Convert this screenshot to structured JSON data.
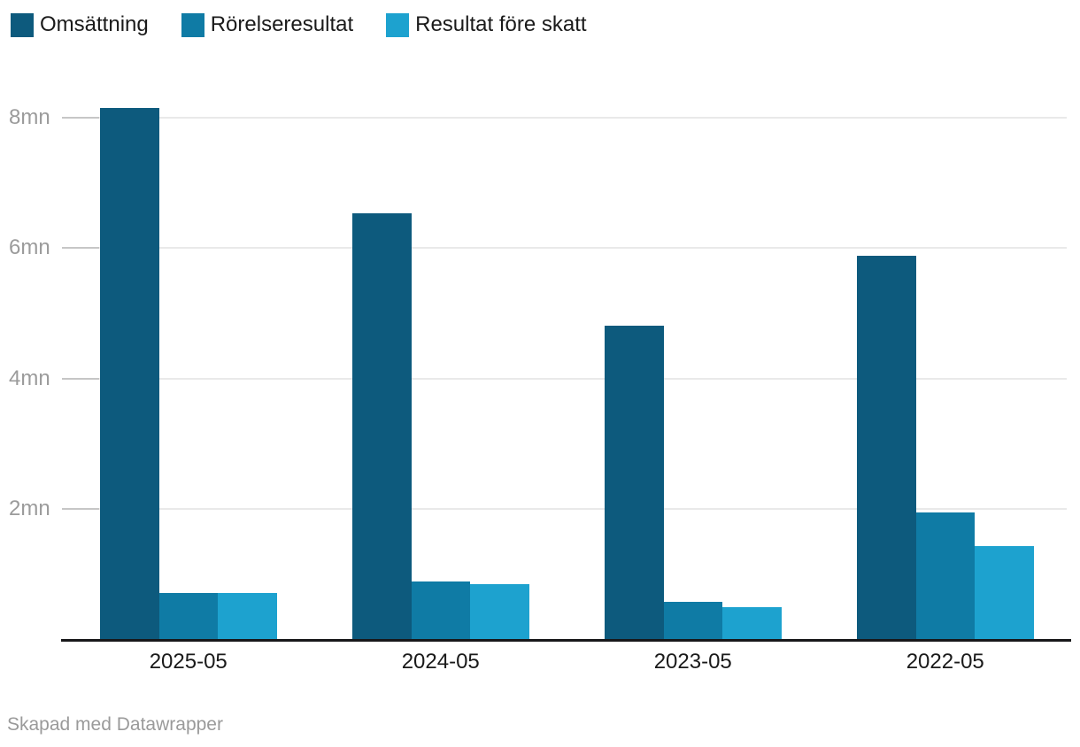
{
  "legend": {
    "items": [
      {
        "label": "Omsättning",
        "color": "#0d5a7d"
      },
      {
        "label": "Rörelseresultat",
        "color": "#0f7ba5"
      },
      {
        "label": "Resultat före skatt",
        "color": "#1da2cf"
      }
    ]
  },
  "chart_data": {
    "type": "bar",
    "title": "",
    "xlabel": "",
    "ylabel": "",
    "unit": "mn",
    "categories": [
      "2025-05",
      "2024-05",
      "2023-05",
      "2022-05"
    ],
    "series": [
      {
        "name": "Omsättning",
        "color": "#0d5a7d",
        "values": [
          8.15,
          6.53,
          4.81,
          5.88
        ]
      },
      {
        "name": "Rörelseresultat",
        "color": "#0f7ba5",
        "values": [
          0.7,
          0.88,
          0.57,
          1.94
        ]
      },
      {
        "name": "Resultat före skatt",
        "color": "#1da2cf",
        "values": [
          0.7,
          0.84,
          0.49,
          1.42
        ]
      }
    ],
    "y_ticks": [
      2,
      4,
      6,
      8
    ],
    "y_tick_labels": [
      "2mn",
      "4mn",
      "6mn",
      "8mn"
    ],
    "ylim": [
      0,
      8.6
    ],
    "grid": true,
    "legend_position": "top-left"
  },
  "footer": {
    "credit": "Skapad med Datawrapper"
  },
  "colors": {
    "background": "#ffffff",
    "axis_line": "#18181a",
    "grid_line": "#e9e9e9",
    "tick_line": "#c6c6c6",
    "y_label_text": "#9b9b9b",
    "x_label_text": "#1a1a1a",
    "footer_text": "#9a9a9a"
  }
}
